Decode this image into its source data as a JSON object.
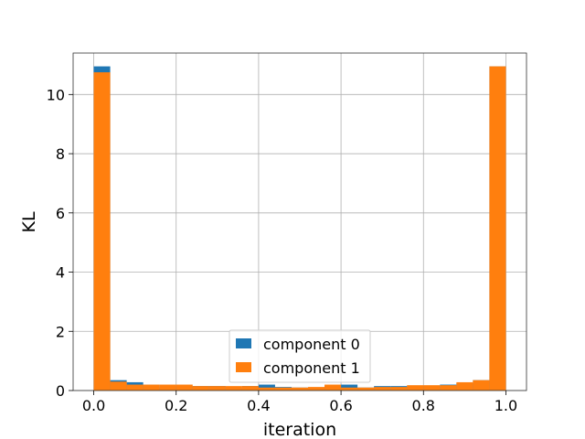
{
  "chart_data": {
    "type": "bar",
    "xlabel": "iteration",
    "ylabel": "KL",
    "xlim": [
      -0.05,
      1.05
    ],
    "ylim": [
      0,
      11.4
    ],
    "xticks": [
      {
        "value": 0.0,
        "label": "0.0"
      },
      {
        "value": 0.2,
        "label": "0.2"
      },
      {
        "value": 0.4,
        "label": "0.4"
      },
      {
        "value": 0.6,
        "label": "0.6"
      },
      {
        "value": 0.8,
        "label": "0.8"
      },
      {
        "value": 1.0,
        "label": "1.0"
      }
    ],
    "yticks": [
      {
        "value": 0,
        "label": "0"
      },
      {
        "value": 2,
        "label": "2"
      },
      {
        "value": 4,
        "label": "4"
      },
      {
        "value": 6,
        "label": "6"
      },
      {
        "value": 8,
        "label": "8"
      },
      {
        "value": 10,
        "label": "10"
      }
    ],
    "grid": true,
    "legend_position": "lower-center",
    "bin_edges": [
      0.0,
      0.04,
      0.08,
      0.12,
      0.16,
      0.2,
      0.24,
      0.28,
      0.32,
      0.36,
      0.4,
      0.44,
      0.48,
      0.52,
      0.56,
      0.6,
      0.64,
      0.68,
      0.72,
      0.76,
      0.8,
      0.84,
      0.88,
      0.92,
      0.96,
      1.0
    ],
    "series": [
      {
        "name": "component 0",
        "color": "#1f77b4",
        "values": [
          10.95,
          0.35,
          0.28,
          0.2,
          0.1,
          0.15,
          0.15,
          0.15,
          0.08,
          0.15,
          0.2,
          0.12,
          0.1,
          0.08,
          0.15,
          0.2,
          0.1,
          0.15,
          0.15,
          0.15,
          0.15,
          0.2,
          0.25,
          0.35,
          10.95
        ]
      },
      {
        "name": "component 1",
        "color": "#ff7f0e",
        "values": [
          10.75,
          0.3,
          0.2,
          0.2,
          0.2,
          0.2,
          0.15,
          0.15,
          0.15,
          0.15,
          0.1,
          0.1,
          0.1,
          0.12,
          0.2,
          0.1,
          0.1,
          0.12,
          0.12,
          0.18,
          0.18,
          0.18,
          0.28,
          0.35,
          10.95
        ]
      }
    ]
  }
}
